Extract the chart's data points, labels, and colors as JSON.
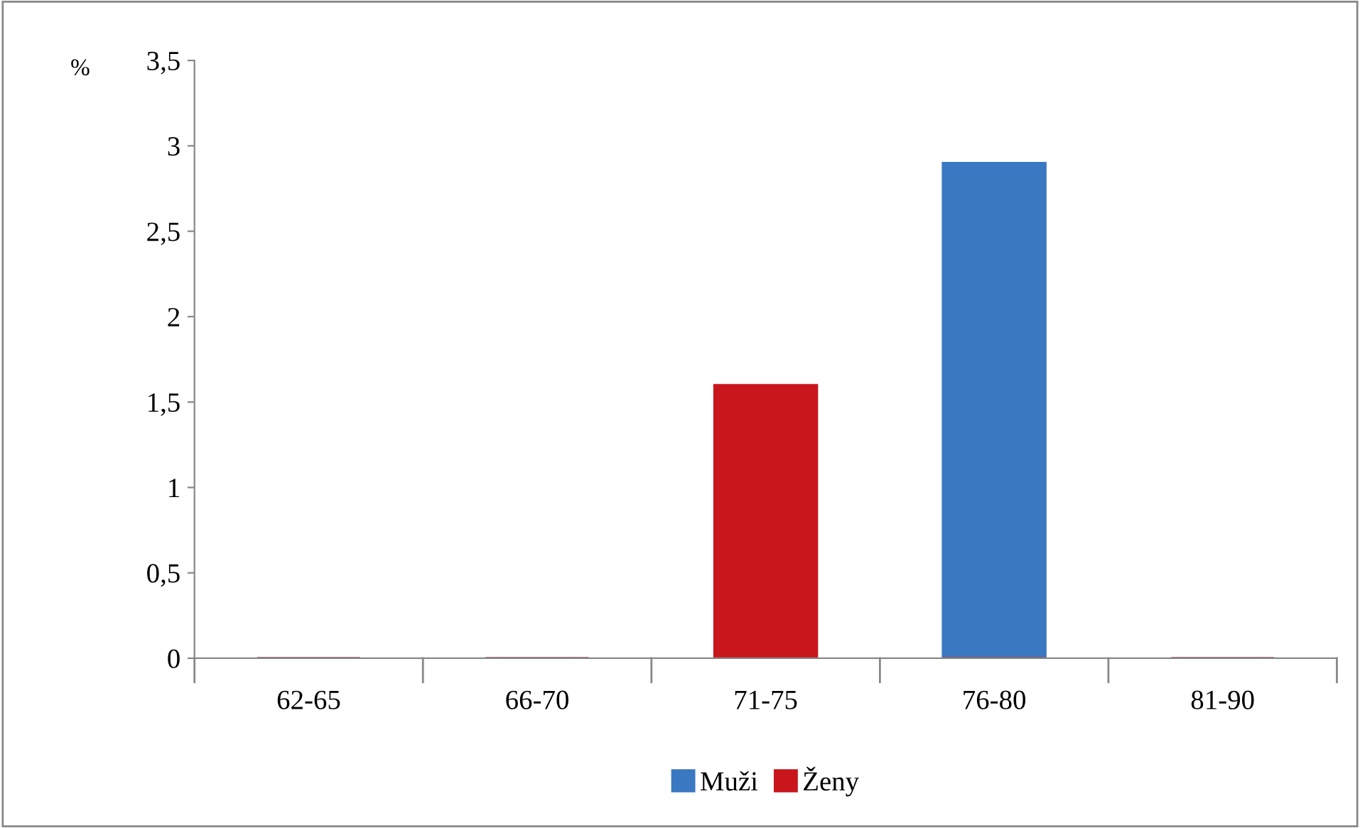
{
  "chart_data": {
    "type": "bar",
    "ylabel": "%",
    "categories": [
      "62-65",
      "66-70",
      "71-75",
      "76-80",
      "81-90"
    ],
    "series": [
      {
        "name": "Muži",
        "color": "#3a78c2",
        "values": [
          0,
          0,
          0,
          2.9,
          0
        ]
      },
      {
        "name": "Ženy",
        "color": "#c8161c",
        "values": [
          0,
          0,
          1.6,
          0,
          0
        ]
      }
    ],
    "ylim": [
      0,
      3.5
    ],
    "yticks": [
      0,
      {
        "value": 0.5,
        "label": "0,5"
      },
      1,
      {
        "value": 1.5,
        "label": "1,5"
      },
      2,
      {
        "value": 2.5,
        "label": "2,5"
      },
      3,
      {
        "value": 3.5,
        "label": "3,5"
      }
    ],
    "grid": false,
    "legend": "bottom"
  }
}
